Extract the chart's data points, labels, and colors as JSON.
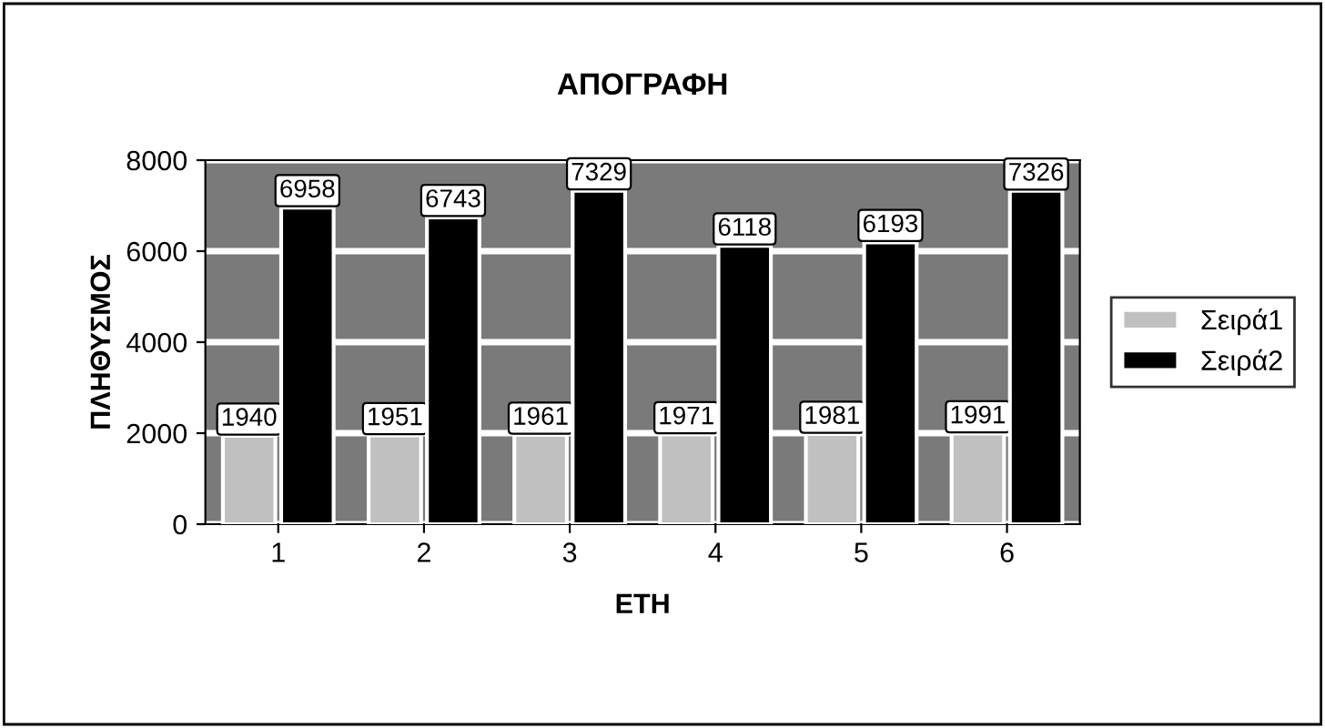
{
  "chart_data": {
    "type": "bar",
    "title": "ΑΠΟΓΡΑΦΗ",
    "xlabel": "ΕΤΗ",
    "ylabel": "ΠΛΗΘΥΣΜΟΣ",
    "categories": [
      "1",
      "2",
      "3",
      "4",
      "5",
      "6"
    ],
    "series": [
      {
        "name": "Σειρά1",
        "color": "#c0c0c0",
        "values": [
          1940,
          1951,
          1961,
          1971,
          1981,
          1991
        ]
      },
      {
        "name": "Σειρά2",
        "color": "#000000",
        "values": [
          6958,
          6743,
          7329,
          6118,
          6193,
          7326
        ]
      }
    ],
    "ylim": [
      0,
      8000
    ],
    "yticks": [
      0,
      2000,
      4000,
      6000,
      8000
    ],
    "grid": "y",
    "legend": "right",
    "data_labels": true
  }
}
